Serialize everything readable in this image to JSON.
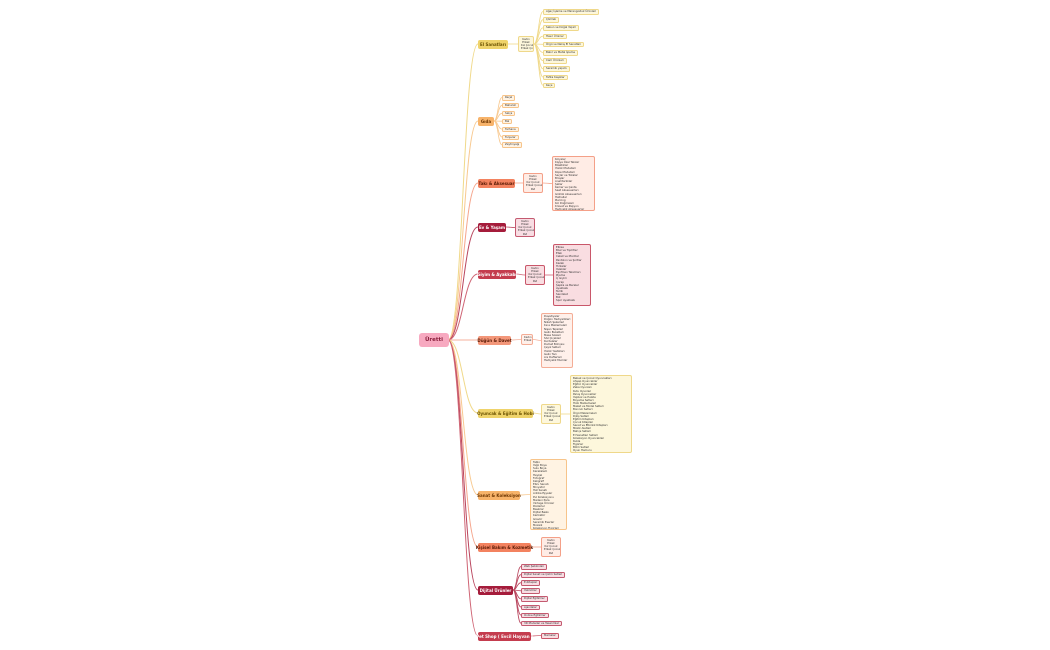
{
  "root": {
    "label": "Üretti",
    "color": "#f7a9c0"
  },
  "branches": [
    {
      "label": "El Sanatları",
      "color": "#efd36a",
      "text": "#6b5200",
      "fill": "#fdf7dc",
      "border": "#efd88a",
      "line": "#f0d98a",
      "segments": [
        "Kadın",
        "Erkek",
        "Kız Çocuk",
        "Erkek Çocuk"
      ],
      "leaves": [
        "Ağaç İşleme ve Marangozluk Ürünleri",
        "Çömlek",
        "Sabun ve Doğal Yapım",
        "Hasır Ürünler",
        "Örgü ve Nakış El Sanatları",
        "Bakır ve Metal İşleme",
        "Cam Ürünleri",
        "Seramik yapımı",
        "Tahta Kaşıklar",
        "Keçe"
      ]
    },
    {
      "label": "Gıda",
      "color": "#f7b36a",
      "text": "#6b3400",
      "fill": "#fff3e3",
      "border": "#f7c48a",
      "line": "#f8c990",
      "leaves": [
        "Reçel",
        "Baharat",
        "Salça",
        "Bal",
        "Tarhana",
        "Turşular",
        "Zeytinyağı"
      ]
    },
    {
      "label": "Takı & Aksesuar",
      "color": "#f3825f",
      "text": "#5a1a05",
      "fill": "#ffece5",
      "border": "#f4a088",
      "line": "#f5a58c",
      "segments": [
        "Kadın",
        "Erkek",
        "Kız Çocuk",
        "Erkek Çocuk",
        "Pet"
      ],
      "items": [
        "Kolyeler",
        "Kişiye Özel Takılar",
        "Bileklikler",
        "Yüzük Modelleri",
        "Küpe Modelleri",
        "Saçlar ve Tokalar",
        "Broşlar",
        "Anahtarlıklar",
        "Şallar",
        "Kemer ve Çanta",
        "Saat Aksesuarları",
        "Gözlük Aksesuarları",
        "Halhallar",
        "Piercing",
        "Kol Düğmeleri",
        "Kravat ve Papyon",
        "Hediyelik Aksesuarlar"
      ]
    },
    {
      "label": "Ev & Yaşam",
      "color": "#a51c3b",
      "text": "#ffffff",
      "fill": "#f8dde3",
      "border": "#c45a70",
      "line": "#b9465e",
      "segments": [
        "Kadın",
        "Erkek",
        "Kız Çocuk",
        "Erkek Çocuk",
        "Pet"
      ]
    },
    {
      "label": "Giyim & Ayakkabı",
      "color": "#c43c4e",
      "text": "#ffffff",
      "fill": "#f9dde1",
      "border": "#c9576a",
      "line": "#cf6474",
      "segments": [
        "Kadın",
        "Erkek",
        "Kız Çocuk",
        "Erkek Çocuk",
        "Pet"
      ],
      "items": [
        "Elbise",
        "Bluz ve Tişörtler",
        "Etek",
        "Ceket ve Montlar",
        "Pantolon ve Şortlar",
        "Kazak",
        "Hırkalar",
        "Yelekler",
        "Eşofman Takımları",
        "Pijama",
        "İç Giyim",
        "Çorap",
        "Şapka ve Bereler",
        "Ayakkabı",
        "Terlik",
        "Sandalet",
        "Bot",
        "Spor Ayakkabı"
      ]
    },
    {
      "label": "Düğün & Davet",
      "color": "#f3977a",
      "text": "#5a1a05",
      "fill": "#fff0ea",
      "border": "#f4ad96",
      "line": "#f5b19c",
      "segments": [
        "Kadın",
        "Erkek"
      ],
      "items": [
        "Davetiyeler",
        "Düğün Hediyelikleri",
        "Nikah Şekerleri",
        "Kına Malzemeleri",
        "Nişan Tepsileri",
        "Gelin Buketleri",
        "Masa Süsleri",
        "Söz Çiçekleri",
        "Kurdeleler",
        "Damat Bohçası",
        "Çeyiz Setleri",
        "Yüzük Yastıkları",
        "Gelin Tacı",
        "Anı Defterleri",
        "Hediyelik Mumlar"
      ]
    },
    {
      "label": "Oyuncak & Eğitim & Hobi",
      "color": "#efd36a",
      "text": "#6b5200",
      "fill": "#fdf7dc",
      "border": "#efd88a",
      "line": "#f0d98a",
      "segments": [
        "Kadın",
        "Erkek",
        "Kız Çocuk",
        "Erkek Çocuk",
        "Pet"
      ],
      "items": [
        "Bebek ve Çocuk Oyuncakları",
        "Ahşap Oyuncaklar",
        "Eğitici Oyuncaklar",
        "Zeka Oyunları",
        "Kutu Oyunları",
        "Peluş Oyuncaklar",
        "Yapboz ve Puzzle",
        "Boyama Setleri",
        "Hobi Malzemeleri",
        "Maket ve Model Setleri",
        "Boncuk Setleri",
        "Örgü Malzemeleri",
        "Dikiş Setleri",
        "Eğitim Kitapları",
        "Çocuk Kitapları",
        "Sanat ve Etkinlik Kitapları",
        "Müzik Aletleri",
        "Bahçe Setleri",
        "El Sanatları Setleri",
        "Koleksiyon Oyuncakları",
        "Kukla",
        "Figürler",
        "Bilim Setleri",
        "Oyun Hamuru",
        "Kırtasiye",
        "Hobi Aksesuarları"
      ]
    },
    {
      "label": "Sanat & Koleksiyon",
      "color": "#f7b36a",
      "text": "#6b3400",
      "fill": "#fff3e3",
      "border": "#f7c48a",
      "line": "#f8c990",
      "items": [
        "Tablo",
        "Yağlı Boya",
        "Sulu Boya",
        "Karakalem",
        "Heykel",
        "Fotoğraf",
        "Kaligrafi",
        "Ebru Sanatı",
        "Minyatür",
        "Hat Sanatı",
        "Antika Eşyalar",
        "Pul Koleksiyonu",
        "Madeni Para",
        "Vintage Ürünler",
        "Posterler",
        "Baskılar",
        "Dijital Baskı",
        "Karikatür",
        "Gravür",
        "Seramik Eserler",
        "Mozaik",
        "Koleksiyon Figürleri"
      ]
    },
    {
      "label": "Kişisel Bakım & Kozmetik",
      "color": "#f3825f",
      "text": "#5a1a05",
      "fill": "#ffece5",
      "border": "#f4a088",
      "line": "#f5a58c",
      "segments": [
        "Kadın",
        "Erkek",
        "Kız Çocuk",
        "Erkek Çocuk",
        "Pet"
      ]
    },
    {
      "label": "Dijital Ürünler",
      "color": "#a51c3b",
      "text": "#ffffff",
      "fill": "#f8dde3",
      "border": "#c45a70",
      "line": "#b9465e",
      "leaves": [
        "Web Şablonları",
        "Dijital Sanat ve Çizim Setleri",
        "E-Kitaplar",
        "Yazılımlar",
        "Dijital Eğitimler",
        "Ajandalar",
        "Online Eğitimler",
        "3D Modeller ve Tasarımlar"
      ]
    },
    {
      "label": "Pet Shop ( Evcil Hayvan )",
      "color": "#c43c4e",
      "text": "#ffffff",
      "fill": "#f9dde1",
      "border": "#c9576a",
      "line": "#cf6474",
      "leaves": [
        "Mamalar"
      ]
    }
  ]
}
